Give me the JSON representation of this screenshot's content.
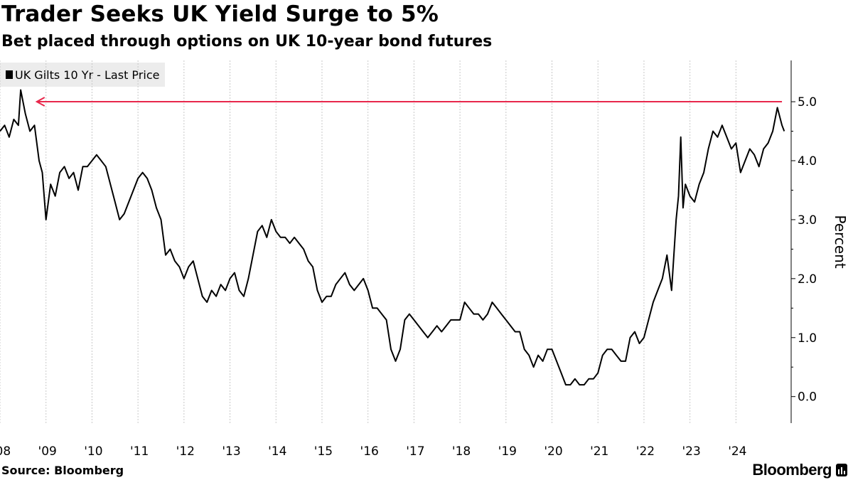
{
  "header": {
    "title": "Trader Seeks UK Yield Surge to 5%",
    "subtitle": "Bet placed through options on UK 10-year bond futures"
  },
  "legend": {
    "label": "UK Gilts 10 Yr - Last Price"
  },
  "footer": {
    "source": "Source: Bloomberg",
    "brand": "Bloomberg"
  },
  "colors": {
    "line": "#000000",
    "target": "#e8274b",
    "grid": "#c8c8c8"
  },
  "chart_data": {
    "type": "line",
    "title": "Trader Seeks UK Yield Surge to 5%",
    "subtitle": "Bet placed through options on UK 10-year bond futures",
    "ylabel": "Percent",
    "xlabel": "",
    "xlim": [
      2008.0,
      2025.2
    ],
    "ylim": [
      -0.45,
      5.7
    ],
    "yticks": [
      0.0,
      1.0,
      2.0,
      3.0,
      4.0,
      5.0
    ],
    "ytick_labels": [
      "0.0",
      "1.0",
      "2.0",
      "3.0",
      "4.0",
      "5.0"
    ],
    "xtick_labels": [
      "'08",
      "'09",
      "'10",
      "'11",
      "'12",
      "'13",
      "'14",
      "'15",
      "'16",
      "'17",
      "'18",
      "'19",
      "'20",
      "'21",
      "'22",
      "'23",
      "'24"
    ],
    "xtick_positions": [
      2008,
      2009,
      2010,
      2011,
      2012,
      2013,
      2014,
      2015,
      2016,
      2017,
      2018,
      2019,
      2020,
      2021,
      2022,
      2023,
      2024
    ],
    "grid": "vertical",
    "series": [
      {
        "name": "UK Gilts 10 Yr - Last Price",
        "x": [
          2008.0,
          2008.1,
          2008.2,
          2008.3,
          2008.4,
          2008.45,
          2008.55,
          2008.65,
          2008.75,
          2008.85,
          2008.92,
          2009.0,
          2009.1,
          2009.2,
          2009.3,
          2009.4,
          2009.5,
          2009.6,
          2009.7,
          2009.8,
          2009.9,
          2010.0,
          2010.1,
          2010.2,
          2010.3,
          2010.4,
          2010.5,
          2010.6,
          2010.7,
          2010.8,
          2010.9,
          2011.0,
          2011.1,
          2011.2,
          2011.3,
          2011.4,
          2011.5,
          2011.6,
          2011.7,
          2011.8,
          2011.9,
          2012.0,
          2012.1,
          2012.2,
          2012.3,
          2012.4,
          2012.5,
          2012.6,
          2012.7,
          2012.8,
          2012.9,
          2013.0,
          2013.1,
          2013.2,
          2013.3,
          2013.4,
          2013.5,
          2013.6,
          2013.7,
          2013.8,
          2013.9,
          2014.0,
          2014.1,
          2014.2,
          2014.3,
          2014.4,
          2014.5,
          2014.6,
          2014.7,
          2014.8,
          2014.9,
          2015.0,
          2015.1,
          2015.2,
          2015.3,
          2015.4,
          2015.5,
          2015.6,
          2015.7,
          2015.8,
          2015.9,
          2016.0,
          2016.1,
          2016.2,
          2016.3,
          2016.4,
          2016.5,
          2016.6,
          2016.7,
          2016.8,
          2016.9,
          2017.0,
          2017.1,
          2017.2,
          2017.3,
          2017.4,
          2017.5,
          2017.6,
          2017.7,
          2017.8,
          2017.9,
          2018.0,
          2018.1,
          2018.2,
          2018.3,
          2018.4,
          2018.5,
          2018.6,
          2018.7,
          2018.8,
          2018.9,
          2019.0,
          2019.1,
          2019.2,
          2019.3,
          2019.4,
          2019.5,
          2019.6,
          2019.7,
          2019.8,
          2019.9,
          2020.0,
          2020.1,
          2020.2,
          2020.3,
          2020.4,
          2020.5,
          2020.6,
          2020.7,
          2020.8,
          2020.9,
          2021.0,
          2021.1,
          2021.2,
          2021.3,
          2021.4,
          2021.5,
          2021.6,
          2021.7,
          2021.8,
          2021.9,
          2022.0,
          2022.1,
          2022.2,
          2022.3,
          2022.4,
          2022.5,
          2022.6,
          2022.7,
          2022.75,
          2022.8,
          2022.85,
          2022.9,
          2023.0,
          2023.1,
          2023.2,
          2023.3,
          2023.4,
          2023.5,
          2023.6,
          2023.7,
          2023.8,
          2023.9,
          2024.0,
          2024.1,
          2024.2,
          2024.3,
          2024.4,
          2024.5,
          2024.6,
          2024.7,
          2024.8,
          2024.9,
          2025.0,
          2025.05
        ],
        "y": [
          4.5,
          4.6,
          4.4,
          4.7,
          4.6,
          5.2,
          4.8,
          4.5,
          4.6,
          4.0,
          3.8,
          3.0,
          3.6,
          3.4,
          3.8,
          3.9,
          3.7,
          3.8,
          3.5,
          3.9,
          3.9,
          4.0,
          4.1,
          4.0,
          3.9,
          3.6,
          3.3,
          3.0,
          3.1,
          3.3,
          3.5,
          3.7,
          3.8,
          3.7,
          3.5,
          3.2,
          3.0,
          2.4,
          2.5,
          2.3,
          2.2,
          2.0,
          2.2,
          2.3,
          2.0,
          1.7,
          1.6,
          1.8,
          1.7,
          1.9,
          1.8,
          2.0,
          2.1,
          1.8,
          1.7,
          2.0,
          2.4,
          2.8,
          2.9,
          2.7,
          3.0,
          2.8,
          2.7,
          2.7,
          2.6,
          2.7,
          2.6,
          2.5,
          2.3,
          2.2,
          1.8,
          1.6,
          1.7,
          1.7,
          1.9,
          2.0,
          2.1,
          1.9,
          1.8,
          1.9,
          2.0,
          1.8,
          1.5,
          1.5,
          1.4,
          1.3,
          0.8,
          0.6,
          0.8,
          1.3,
          1.4,
          1.3,
          1.2,
          1.1,
          1.0,
          1.1,
          1.2,
          1.1,
          1.2,
          1.3,
          1.3,
          1.3,
          1.6,
          1.5,
          1.4,
          1.4,
          1.3,
          1.4,
          1.6,
          1.5,
          1.4,
          1.3,
          1.2,
          1.1,
          1.1,
          0.8,
          0.7,
          0.5,
          0.7,
          0.6,
          0.8,
          0.8,
          0.6,
          0.4,
          0.2,
          0.2,
          0.3,
          0.2,
          0.2,
          0.3,
          0.3,
          0.4,
          0.7,
          0.8,
          0.8,
          0.7,
          0.6,
          0.6,
          1.0,
          1.1,
          0.9,
          1.0,
          1.3,
          1.6,
          1.8,
          2.0,
          2.4,
          1.8,
          3.0,
          3.4,
          4.4,
          3.2,
          3.6,
          3.4,
          3.3,
          3.6,
          3.8,
          4.2,
          4.5,
          4.4,
          4.6,
          4.4,
          4.2,
          4.3,
          3.8,
          4.0,
          4.2,
          4.1,
          3.9,
          4.2,
          4.3,
          4.5,
          4.9,
          4.6,
          4.5
        ]
      },
      {
        "name": "Target 5% yield",
        "x": [
          2025.0,
          2008.8
        ],
        "y": [
          5.0,
          5.0
        ]
      }
    ]
  }
}
